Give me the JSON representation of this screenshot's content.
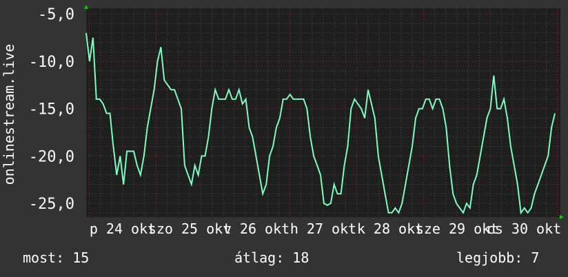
{
  "chart_data": {
    "type": "line",
    "ylabel": "onlinestream.live",
    "ylim": [
      -26.45,
      -4.4
    ],
    "yticks": [
      -25,
      -20,
      -15,
      -10,
      -5
    ],
    "ytick_labels": [
      "-25,0",
      "-20,0",
      "-15,0",
      "-10,0",
      "-5,0"
    ],
    "xtick_labels": [
      "p 24 okt",
      "szo 25 okt",
      "v 26 okt",
      "h 27 okt",
      "k 28 okt",
      "sze 29 okt",
      "cs 30 okt"
    ],
    "grid": true,
    "line_color": "#7fffbf",
    "values": [
      -7,
      -10,
      -7.5,
      -14,
      -14,
      -14.5,
      -15.5,
      -15.5,
      -19,
      -22,
      -20,
      -23,
      -19.5,
      -19.5,
      -19.5,
      -21,
      -22,
      -20,
      -17,
      -15,
      -13,
      -10,
      -8.5,
      -12,
      -12.5,
      -13,
      -13,
      -14,
      -15,
      -21,
      -22,
      -23,
      -21,
      -22,
      -20,
      -20,
      -18,
      -15,
      -13,
      -14,
      -14,
      -14,
      -13,
      -14,
      -14,
      -13,
      -14.5,
      -14,
      -17,
      -18,
      -20,
      -22,
      -24,
      -23,
      -20,
      -19,
      -17,
      -16,
      -14,
      -14,
      -13.5,
      -14,
      -14,
      -14,
      -14,
      -15,
      -18,
      -20,
      -21,
      -22,
      -25,
      -25.2,
      -25,
      -23,
      -24,
      -24,
      -21,
      -19,
      -15,
      -14,
      -14.5,
      -15,
      -16,
      -13,
      -14.5,
      -16,
      -20,
      -22,
      -24,
      -26,
      -26,
      -25.5,
      -26,
      -25,
      -23,
      -21,
      -19,
      -16,
      -15,
      -15,
      -14,
      -14,
      -15,
      -14,
      -14,
      -15,
      -17,
      -21,
      -24,
      -25,
      -25.5,
      -26,
      -25,
      -25.5,
      -23,
      -22,
      -20,
      -18,
      -16,
      -15,
      -11.5,
      -15,
      -15,
      -14,
      -16,
      -19,
      -21,
      -23,
      -26,
      -25.5,
      -26,
      -25.5,
      -24,
      -23,
      -22,
      -21,
      -20,
      -17,
      -15.5
    ]
  },
  "footer": {
    "current": "most: 15",
    "average": "átlag: 18",
    "best": "legjobb: 7"
  },
  "colors": {
    "background": "#333333",
    "plot": "#1e1e1e",
    "major_grid": "#a03030",
    "minor_grid": "#555555",
    "axis_arrow": "#00cc00"
  }
}
